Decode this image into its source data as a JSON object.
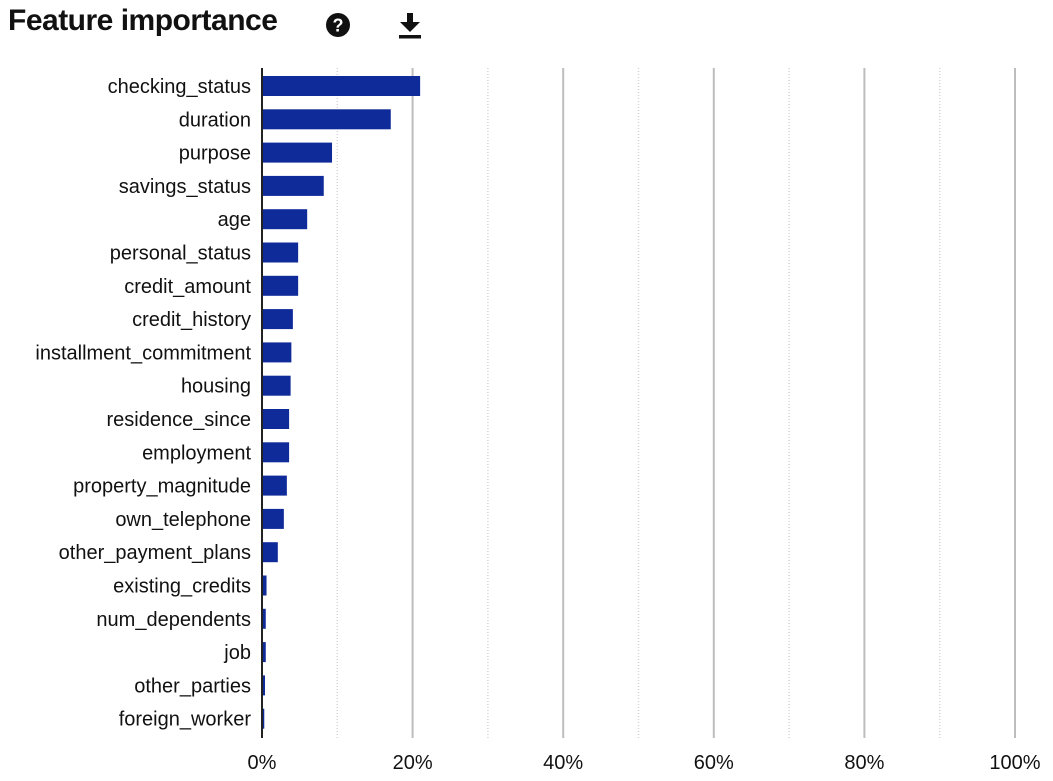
{
  "header": {
    "title": "Feature importance",
    "help_icon": "help-circle-icon",
    "download_icon": "download-icon"
  },
  "colors": {
    "bar": "#0f2a99",
    "grid_major": "#bdbdbd",
    "grid_minor": "#d4d4d4",
    "axis": "#222222"
  },
  "chart_data": {
    "type": "bar",
    "orientation": "horizontal",
    "title": "Feature importance",
    "xlabel": "",
    "ylabel": "",
    "xlim": [
      0,
      100
    ],
    "x_unit": "%",
    "xticks": [
      0,
      20,
      40,
      60,
      80,
      100
    ],
    "xtick_labels": [
      "0%",
      "20%",
      "40%",
      "60%",
      "80%",
      "100%"
    ],
    "minor_gridlines": [
      10,
      30,
      50,
      70,
      90
    ],
    "grid": true,
    "categories": [
      "checking_status",
      "duration",
      "purpose",
      "savings_status",
      "age",
      "personal_status",
      "credit_amount",
      "credit_history",
      "installment_commitment",
      "housing",
      "residence_since",
      "employment",
      "property_magnitude",
      "own_telephone",
      "other_payment_plans",
      "existing_credits",
      "num_dependents",
      "job",
      "other_parties",
      "foreign_worker"
    ],
    "values": [
      21.0,
      17.1,
      9.3,
      8.2,
      6.0,
      4.8,
      4.8,
      4.1,
      3.9,
      3.8,
      3.6,
      3.6,
      3.3,
      2.9,
      2.1,
      0.6,
      0.5,
      0.5,
      0.4,
      0.3
    ]
  }
}
